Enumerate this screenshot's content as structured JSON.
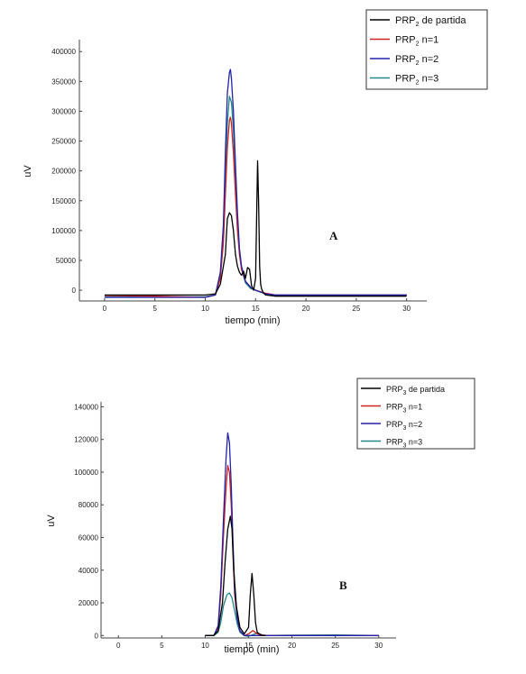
{
  "chart_data": [
    {
      "type": "line",
      "panel_label": "A",
      "xlabel": "tiempo (min)",
      "ylabel": "uV",
      "xlim": [
        -2.5,
        32
      ],
      "ylim": [
        -18000,
        420000
      ],
      "x_ticks": [
        0,
        5,
        10,
        15,
        20,
        25,
        30
      ],
      "y_ticks": [
        0,
        50000,
        100000,
        150000,
        200000,
        250000,
        300000,
        350000,
        400000
      ],
      "legend_position": "top-right",
      "series": [
        {
          "name_main": "PRP",
          "name_sub": "2",
          "name_rest": " de partida",
          "color": "#000000",
          "x": [
            0,
            10,
            11,
            11.5,
            12,
            12.2,
            12.4,
            12.6,
            12.8,
            13.0,
            13.2,
            13.4,
            13.6,
            13.8,
            14.0,
            14.2,
            14.4,
            14.6,
            14.8,
            15.0,
            15.1,
            15.2,
            15.3,
            15.4,
            15.5,
            15.6,
            15.8,
            16.0,
            17.0,
            20,
            30
          ],
          "y": [
            -8000,
            -8000,
            -6000,
            10000,
            60000,
            120000,
            130000,
            125000,
            100000,
            60000,
            40000,
            30000,
            25000,
            32000,
            20000,
            38000,
            35000,
            8000,
            0,
            20000,
            120000,
            217000,
            150000,
            40000,
            10000,
            2000,
            -5000,
            -8000,
            -10000,
            -10000,
            -10000
          ]
        },
        {
          "name_main": "PRP",
          "name_sub": "2",
          "name_rest": " n=1",
          "color": "#cc2222",
          "x": [
            0,
            5,
            10,
            11,
            11.5,
            11.8,
            12.0,
            12.2,
            12.4,
            12.5,
            12.6,
            12.8,
            13.0,
            13.2,
            13.4,
            13.6,
            14.0,
            14.5,
            15.0,
            16.0,
            17.0,
            20,
            30
          ],
          "y": [
            -9000,
            -10000,
            -12000,
            -8000,
            20000,
            80000,
            160000,
            240000,
            285000,
            290000,
            280000,
            230000,
            160000,
            100000,
            60000,
            35000,
            15000,
            5000,
            0,
            -5000,
            -8000,
            -8000,
            -8000
          ]
        },
        {
          "name_main": "PRP",
          "name_sub": "2",
          "name_rest": " n=2",
          "color": "#2222aa",
          "x": [
            0,
            5,
            10,
            11,
            11.5,
            11.8,
            12.0,
            12.2,
            12.4,
            12.5,
            12.6,
            12.8,
            13.0,
            13.2,
            13.4,
            13.6,
            14.0,
            14.5,
            15.0,
            16.0,
            17.0,
            20,
            30
          ],
          "y": [
            -12000,
            -12000,
            -12000,
            -8000,
            30000,
            110000,
            230000,
            330000,
            365000,
            370000,
            355000,
            300000,
            210000,
            130000,
            70000,
            40000,
            15000,
            5000,
            0,
            -6000,
            -8000,
            -8000,
            -8000
          ]
        },
        {
          "name_main": "PRP",
          "name_sub": "2",
          "name_rest": " n=3",
          "color": "#228888",
          "x": [
            0,
            5,
            10,
            11,
            11.5,
            11.8,
            12.0,
            12.2,
            12.4,
            12.6,
            12.8,
            13.0,
            13.2,
            13.4,
            13.6,
            14.0,
            14.5,
            15.0,
            16.0,
            17.0,
            20,
            30
          ],
          "y": [
            -11000,
            -11000,
            -11000,
            -8000,
            25000,
            90000,
            190000,
            280000,
            325000,
            315000,
            270000,
            190000,
            120000,
            65000,
            35000,
            12000,
            3000,
            0,
            -6000,
            -8000,
            -8000,
            -8000
          ]
        }
      ]
    },
    {
      "type": "line",
      "panel_label": "B",
      "xlabel": "tiempo (min)",
      "ylabel": "uV",
      "xlim": [
        -2,
        32
      ],
      "ylim": [
        -1500,
        143000
      ],
      "x_ticks": [
        0,
        5,
        10,
        15,
        20,
        25,
        30
      ],
      "y_ticks": [
        0,
        20000,
        40000,
        60000,
        80000,
        100000,
        120000,
        140000
      ],
      "legend_position": "top-right",
      "series": [
        {
          "name_main": "PRP",
          "name_sub": "3",
          "name_rest": " de partida",
          "color": "#000000",
          "x": [
            10,
            11,
            11.5,
            12.0,
            12.3,
            12.6,
            12.9,
            13.1,
            13.3,
            13.6,
            14.0,
            14.5,
            15.0,
            15.2,
            15.4,
            15.6,
            15.8,
            16.0,
            16.5,
            17.0
          ],
          "y": [
            0,
            0,
            3000,
            20000,
            45000,
            65000,
            73000,
            65000,
            40000,
            18000,
            5000,
            1000,
            5000,
            25000,
            38000,
            25000,
            8000,
            2000,
            0,
            0
          ]
        },
        {
          "name_main": "PRP",
          "name_sub": "3",
          "name_rest": " n=1",
          "color": "#cc2222",
          "x": [
            10,
            11,
            11.5,
            11.8,
            12.1,
            12.4,
            12.6,
            12.8,
            13.0,
            13.2,
            13.4,
            13.7,
            14.0,
            14.5,
            15.0,
            15.5,
            16.0,
            17.0,
            30
          ],
          "y": [
            0,
            0,
            5000,
            25000,
            60000,
            90000,
            104000,
            100000,
            80000,
            50000,
            25000,
            10000,
            3000,
            0,
            1000,
            3000,
            1000,
            0,
            0
          ]
        },
        {
          "name_main": "PRP",
          "name_sub": "3",
          "name_rest": " n=2",
          "color": "#2222aa",
          "x": [
            10,
            11,
            11.5,
            11.8,
            12.1,
            12.4,
            12.6,
            12.8,
            13.0,
            13.2,
            13.4,
            13.7,
            14.0,
            14.5,
            15.0,
            16.0,
            17.0,
            30
          ],
          "y": [
            0,
            0,
            6000,
            30000,
            70000,
            108000,
            124000,
            118000,
            92000,
            58000,
            28000,
            10000,
            3000,
            0,
            0,
            0,
            0,
            0
          ]
        },
        {
          "name_main": "PRP",
          "name_sub": "3",
          "name_rest": " n=3",
          "color": "#228888",
          "x": [
            10,
            11,
            11.5,
            11.8,
            12.1,
            12.5,
            12.8,
            13.1,
            13.4,
            13.7,
            14.0,
            14.5,
            15.0,
            15.5,
            16.0,
            16.5,
            17.0,
            20,
            25,
            30
          ],
          "y": [
            0,
            0,
            2000,
            8000,
            18000,
            25000,
            26000,
            23000,
            15000,
            7000,
            2000,
            0,
            -500,
            500,
            1500,
            500,
            0,
            200,
            300,
            0
          ]
        }
      ]
    }
  ]
}
